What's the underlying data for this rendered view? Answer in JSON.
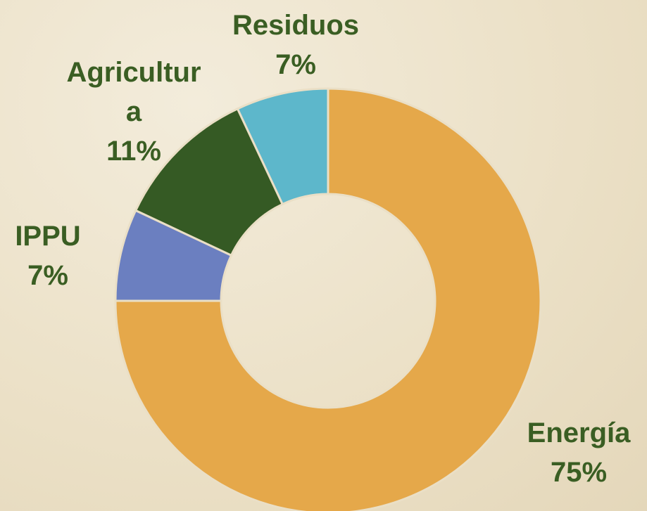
{
  "chart_data": {
    "type": "donut",
    "categories": [
      "Energía",
      "IPPU",
      "Agricultura",
      "Residuos"
    ],
    "values": [
      75,
      7,
      11,
      7
    ],
    "value_labels": [
      "75%",
      "7%",
      "11%",
      "7%"
    ],
    "colors": [
      "#e5a84a",
      "#6b7fc0",
      "#355a24",
      "#5db7cb"
    ]
  }
}
